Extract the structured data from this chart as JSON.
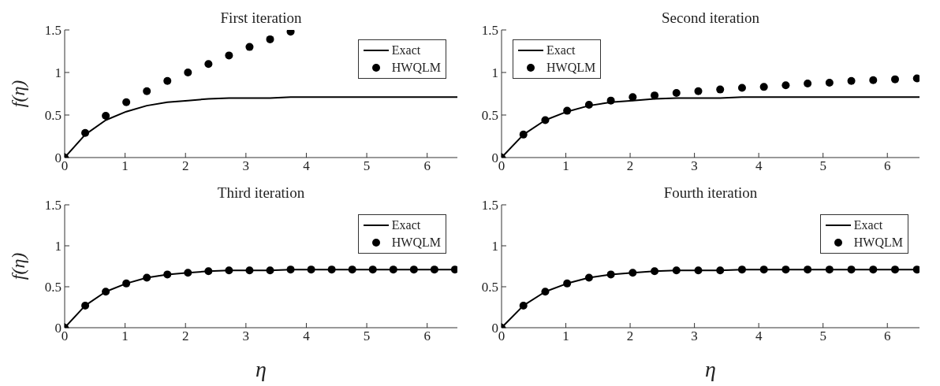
{
  "chart_data": [
    {
      "type": "line",
      "title": "First iteration",
      "ylabel": "f(η)",
      "xlim": [
        0,
        6.5
      ],
      "xticks": [
        0,
        1,
        2,
        3,
        4,
        5,
        6
      ],
      "ylim": [
        0,
        1.5
      ],
      "yticks": [
        0,
        0.5,
        1,
        1.5
      ],
      "legend": "top right",
      "series": [
        {
          "name": "Exact",
          "color": "#000000",
          "marker": "none",
          "line_style": "solid",
          "x": [
            0,
            0.34,
            0.68,
            1.02,
            1.36,
            1.7,
            2.04,
            2.38,
            2.72,
            3.06,
            3.4,
            3.74,
            4.08,
            4.76,
            5.44,
            6.12,
            6.5
          ],
          "values": [
            0,
            0.27,
            0.44,
            0.54,
            0.61,
            0.65,
            0.67,
            0.69,
            0.7,
            0.7,
            0.7,
            0.71,
            0.71,
            0.71,
            0.71,
            0.71,
            0.71
          ]
        },
        {
          "name": "HWQLM",
          "type": "scatter",
          "color": "#000000",
          "marker": "circle",
          "x": [
            0,
            0.34,
            0.68,
            1.02,
            1.36,
            1.7,
            2.04,
            2.38,
            2.72,
            3.06,
            3.4,
            3.74
          ],
          "values": [
            0,
            0.29,
            0.49,
            0.65,
            0.78,
            0.9,
            1.0,
            1.1,
            1.2,
            1.3,
            1.39,
            1.48
          ]
        }
      ]
    },
    {
      "type": "line",
      "title": "Second iteration",
      "xlim": [
        0,
        6.5
      ],
      "xticks": [
        0,
        1,
        2,
        3,
        4,
        5,
        6
      ],
      "ylim": [
        0,
        1.5
      ],
      "yticks": [
        0,
        0.5,
        1,
        1.5
      ],
      "legend": "top left",
      "series": [
        {
          "name": "Exact",
          "color": "#000000",
          "marker": "none",
          "line_style": "solid",
          "x": [
            0,
            0.34,
            0.68,
            1.02,
            1.36,
            1.7,
            2.04,
            2.38,
            2.72,
            3.06,
            3.4,
            3.74,
            4.08,
            4.76,
            5.44,
            6.12,
            6.5
          ],
          "values": [
            0,
            0.27,
            0.44,
            0.54,
            0.61,
            0.65,
            0.67,
            0.69,
            0.7,
            0.7,
            0.7,
            0.71,
            0.71,
            0.71,
            0.71,
            0.71,
            0.71
          ]
        },
        {
          "name": "HWQLM",
          "type": "scatter",
          "color": "#000000",
          "marker": "circle",
          "x": [
            0,
            0.34,
            0.68,
            1.02,
            1.36,
            1.7,
            2.04,
            2.38,
            2.72,
            3.06,
            3.4,
            3.74,
            4.08,
            4.42,
            4.76,
            5.1,
            5.44,
            5.78,
            6.12,
            6.46
          ],
          "values": [
            0,
            0.27,
            0.44,
            0.55,
            0.62,
            0.67,
            0.71,
            0.73,
            0.76,
            0.78,
            0.8,
            0.82,
            0.83,
            0.85,
            0.87,
            0.88,
            0.9,
            0.91,
            0.92,
            0.93
          ]
        }
      ]
    },
    {
      "type": "line",
      "title": "Third iteration",
      "xlabel": "η",
      "ylabel": "f(η)",
      "xlim": [
        0,
        6.5
      ],
      "xticks": [
        0,
        1,
        2,
        3,
        4,
        5,
        6
      ],
      "ylim": [
        0,
        1.5
      ],
      "yticks": [
        0,
        0.5,
        1,
        1.5
      ],
      "legend": "top right",
      "series": [
        {
          "name": "Exact",
          "color": "#000000",
          "marker": "none",
          "line_style": "solid",
          "x": [
            0,
            0.34,
            0.68,
            1.02,
            1.36,
            1.7,
            2.04,
            2.38,
            2.72,
            3.06,
            3.4,
            3.74,
            4.08,
            4.76,
            5.44,
            6.12,
            6.5
          ],
          "values": [
            0,
            0.27,
            0.44,
            0.54,
            0.61,
            0.65,
            0.67,
            0.69,
            0.7,
            0.7,
            0.7,
            0.71,
            0.71,
            0.71,
            0.71,
            0.71,
            0.71
          ]
        },
        {
          "name": "HWQLM",
          "type": "scatter",
          "color": "#000000",
          "marker": "circle",
          "x": [
            0,
            0.34,
            0.68,
            1.02,
            1.36,
            1.7,
            2.04,
            2.38,
            2.72,
            3.06,
            3.4,
            3.74,
            4.08,
            4.42,
            4.76,
            5.1,
            5.44,
            5.78,
            6.12,
            6.46
          ],
          "values": [
            0,
            0.27,
            0.44,
            0.54,
            0.61,
            0.65,
            0.67,
            0.69,
            0.7,
            0.7,
            0.7,
            0.71,
            0.71,
            0.71,
            0.71,
            0.71,
            0.71,
            0.71,
            0.71,
            0.71
          ]
        }
      ]
    },
    {
      "type": "line",
      "title": "Fourth iteration",
      "xlabel": "η",
      "xlim": [
        0,
        6.5
      ],
      "xticks": [
        0,
        1,
        2,
        3,
        4,
        5,
        6
      ],
      "ylim": [
        0,
        1.5
      ],
      "yticks": [
        0,
        0.5,
        1,
        1.5
      ],
      "legend": "top right",
      "series": [
        {
          "name": "Exact",
          "color": "#000000",
          "marker": "none",
          "line_style": "solid",
          "x": [
            0,
            0.34,
            0.68,
            1.02,
            1.36,
            1.7,
            2.04,
            2.38,
            2.72,
            3.06,
            3.4,
            3.74,
            4.08,
            4.76,
            5.44,
            6.12,
            6.5
          ],
          "values": [
            0,
            0.27,
            0.44,
            0.54,
            0.61,
            0.65,
            0.67,
            0.69,
            0.7,
            0.7,
            0.7,
            0.71,
            0.71,
            0.71,
            0.71,
            0.71,
            0.71
          ]
        },
        {
          "name": "HWQLM",
          "type": "scatter",
          "color": "#000000",
          "marker": "circle",
          "x": [
            0,
            0.34,
            0.68,
            1.02,
            1.36,
            1.7,
            2.04,
            2.38,
            2.72,
            3.06,
            3.4,
            3.74,
            4.08,
            4.42,
            4.76,
            5.1,
            5.44,
            5.78,
            6.12,
            6.46
          ],
          "values": [
            0,
            0.27,
            0.44,
            0.54,
            0.61,
            0.65,
            0.67,
            0.69,
            0.7,
            0.7,
            0.7,
            0.71,
            0.71,
            0.71,
            0.71,
            0.71,
            0.71,
            0.71,
            0.71,
            0.71
          ]
        }
      ]
    }
  ]
}
